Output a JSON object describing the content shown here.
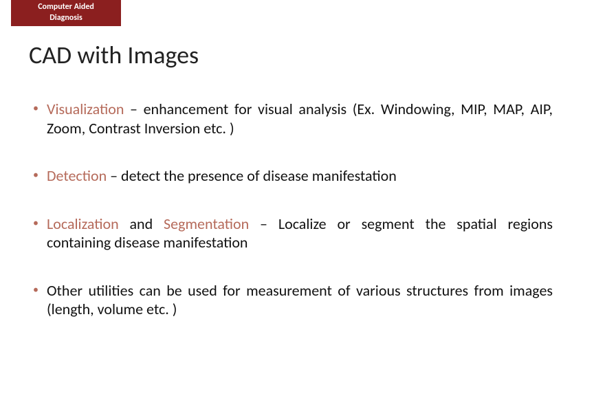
{
  "colors": {
    "badge_bg": "#8b1f1f",
    "badge_text": "#ffffff",
    "accent": "#b56a5a",
    "body_text": "#111111",
    "background": "#ffffff"
  },
  "typography": {
    "title_fontsize": 36,
    "body_fontsize": 22,
    "badge_fontsize": 12
  },
  "badge": {
    "line1": "Computer Aided",
    "line2": "Diagnosis"
  },
  "title": "CAD with Images",
  "bullets": [
    {
      "parts": [
        {
          "text": "Visualization",
          "highlight": true
        },
        {
          "text": " – enhancement for visual analysis (Ex. Windowing, MIP, MAP, AIP,  Zoom, Contrast Inversion etc. )",
          "highlight": false
        }
      ],
      "justify": true
    },
    {
      "parts": [
        {
          "text": "Detection",
          "highlight": true
        },
        {
          "text": " – detect the presence of disease manifestation",
          "highlight": false
        }
      ],
      "justify": false
    },
    {
      "parts": [
        {
          "text": "Localization",
          "highlight": true
        },
        {
          "text": " and ",
          "highlight": false
        },
        {
          "text": "Segmentation",
          "highlight": true
        },
        {
          "text": " – Localize or segment the spatial regions containing disease manifestation",
          "highlight": false
        }
      ],
      "justify": true
    },
    {
      "parts": [
        {
          "text": "Other utilities can be used for measurement of various structures from images (length, volume etc. )",
          "highlight": false
        }
      ],
      "justify": true
    }
  ]
}
